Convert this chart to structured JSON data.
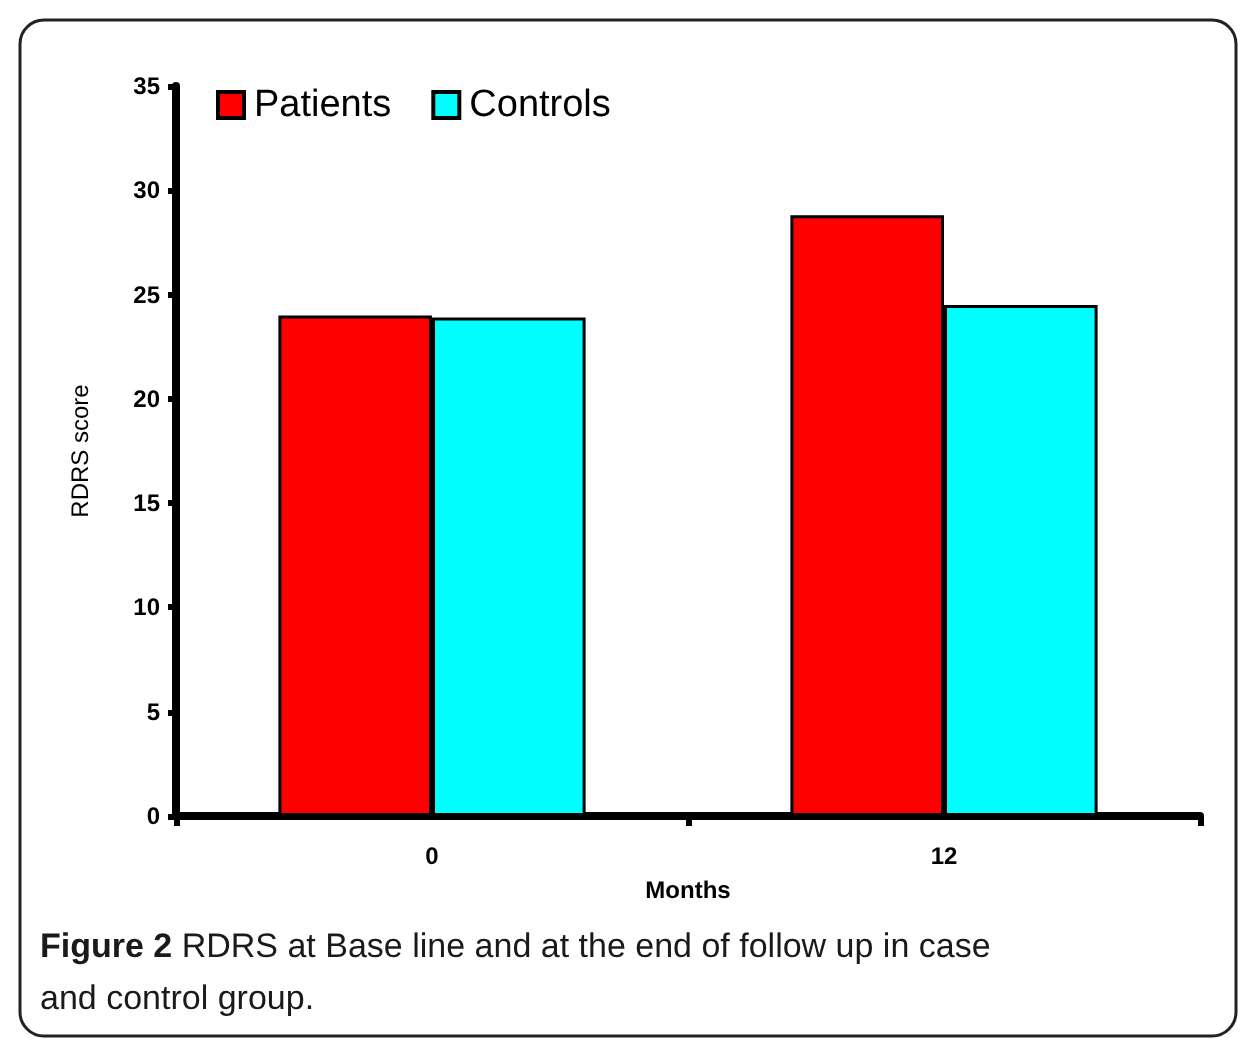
{
  "chart_data": {
    "type": "bar",
    "xlabel": "Months",
    "ylabel": "RDRS score",
    "categories": [
      "0",
      "12"
    ],
    "series": [
      {
        "name": "Patients",
        "color": "#ff0000",
        "values": [
          24.0,
          28.8
        ]
      },
      {
        "name": "Controls",
        "color": "#00ffff",
        "values": [
          23.9,
          24.5
        ]
      }
    ],
    "ylim": [
      0,
      35
    ],
    "yticks": [
      0,
      5,
      10,
      15,
      20,
      25,
      30,
      35
    ],
    "grid": false,
    "legend": "top left",
    "annotations": [
      "Figure 2 RDRS at Base line and at the end of follow up in case and control group."
    ]
  }
}
